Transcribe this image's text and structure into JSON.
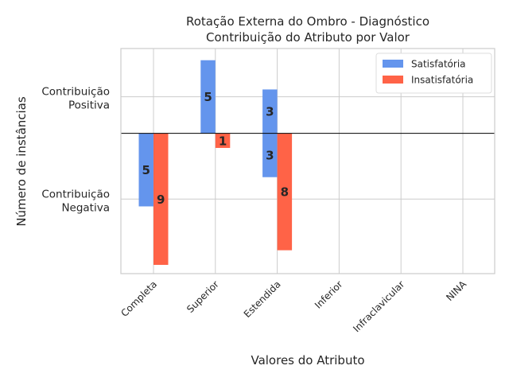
{
  "chart_data": {
    "type": "bar",
    "title": "Rotação Externa do Ombro - Diagnóstico",
    "subtitle": "Contribuição do Atributo por Valor",
    "xlabel": "Valores do Atributo",
    "ylabel": "Número de instâncias",
    "ytick_labels": [
      {
        "text": "Contribuição\nPositiva",
        "value": 2.5
      },
      {
        "text": "Contribuição\nNegativa",
        "value": -4.5
      }
    ],
    "ylim": [
      -9.6,
      5.8
    ],
    "categories": [
      "Completa",
      "Superior",
      "Estendida",
      "Inferior",
      "Infraclavicular",
      "NINA"
    ],
    "series": [
      {
        "name": "Satisfatória",
        "color": "#6495ED",
        "positive": [
          0,
          5,
          3,
          0,
          0,
          0
        ],
        "negative": [
          5,
          0,
          3,
          0,
          0,
          0
        ]
      },
      {
        "name": "Insatisfatória",
        "color": "#FF6347",
        "positive": [
          0,
          0,
          0,
          0,
          0,
          0
        ],
        "negative": [
          9,
          1,
          8,
          0,
          0,
          0
        ]
      }
    ],
    "legend": {
      "placement": "top-right"
    },
    "grid": true
  }
}
